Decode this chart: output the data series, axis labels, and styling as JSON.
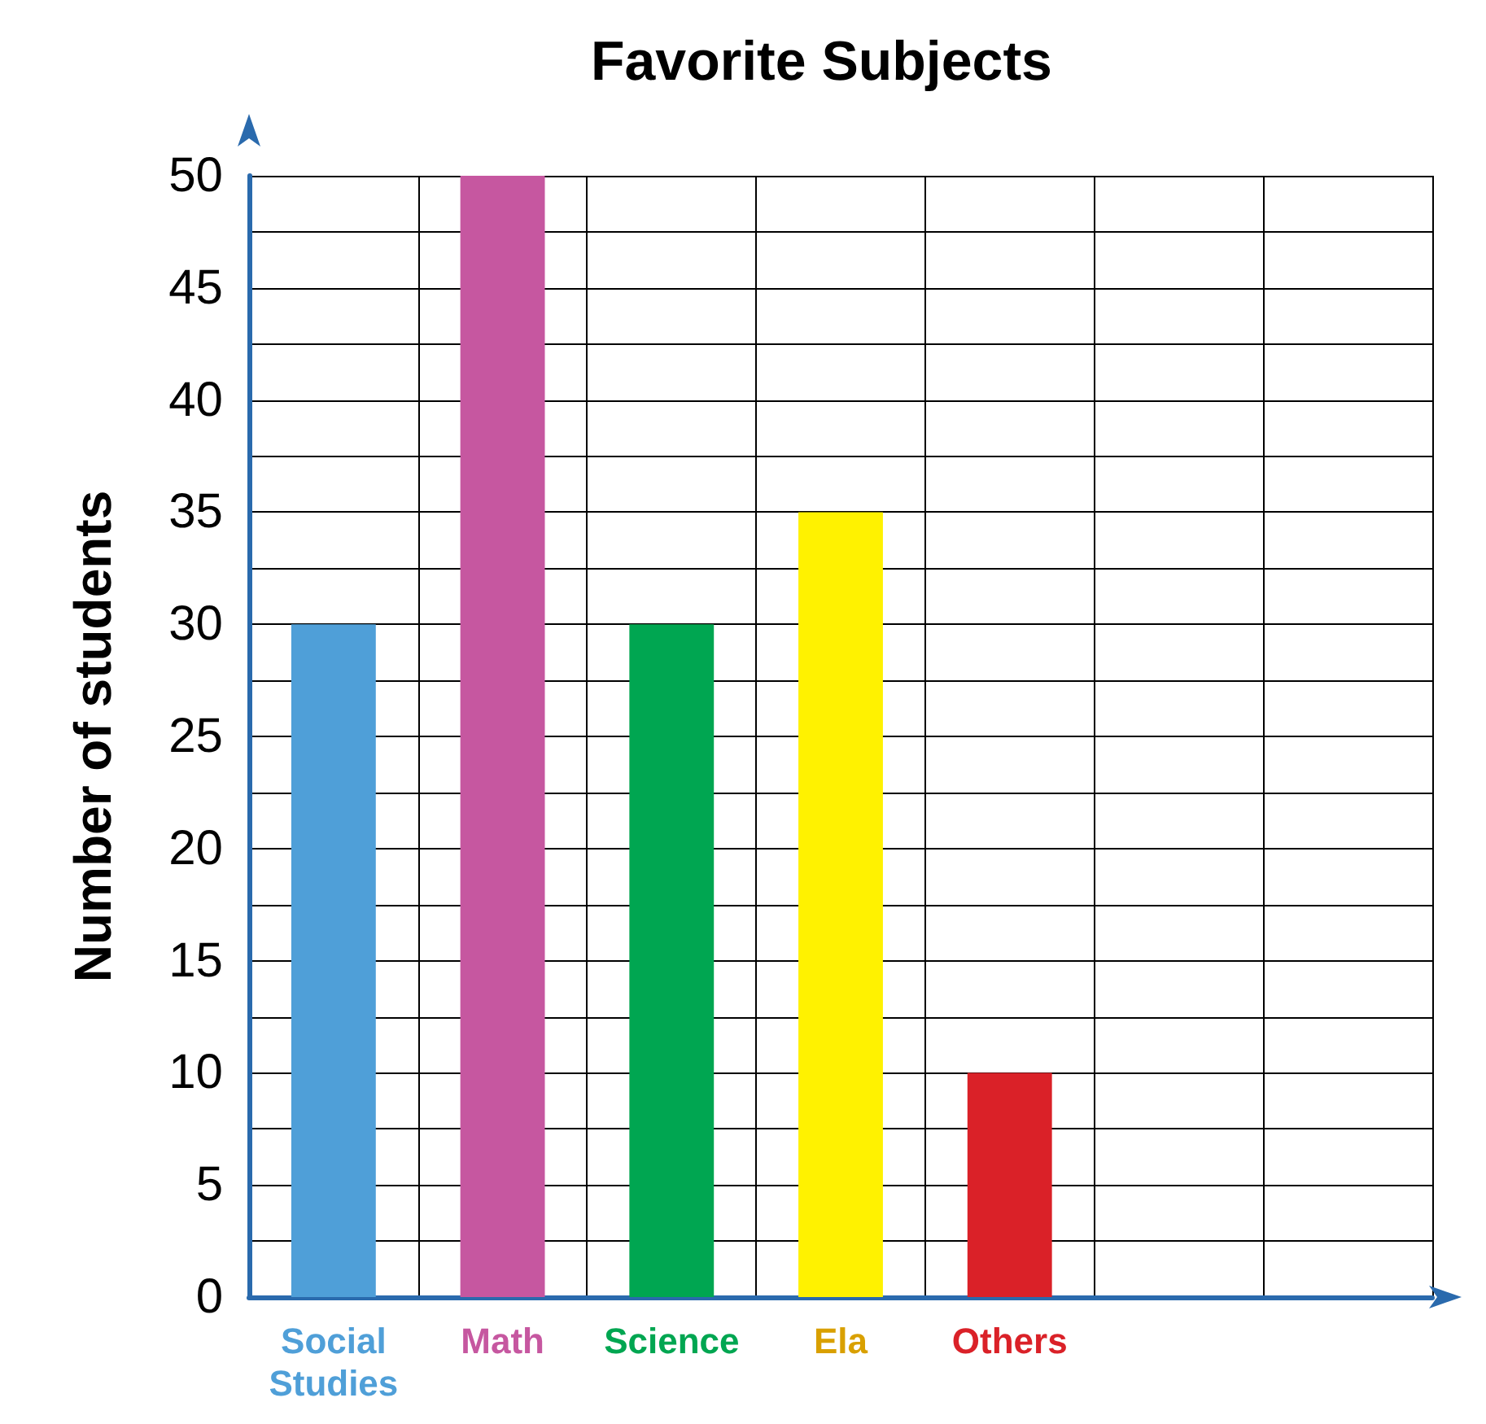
{
  "chart_data": {
    "type": "bar",
    "title": "Favorite Subjects",
    "ylabel": "Number of students",
    "categories": [
      "Social\nStudies",
      "Math",
      "Science",
      "Ela",
      "Others",
      null,
      null
    ],
    "values": [
      30,
      50,
      30,
      35,
      10,
      null,
      null
    ],
    "colors": [
      "#4f9fd8",
      "#c657a0",
      "#00a651",
      "#fff200",
      "#da2128",
      "#000000",
      "#000000"
    ],
    "ylim": [
      0,
      50
    ],
    "yticks": [
      0,
      5,
      10,
      15,
      20,
      25,
      30,
      35,
      40,
      45,
      50
    ],
    "grid": true
  }
}
